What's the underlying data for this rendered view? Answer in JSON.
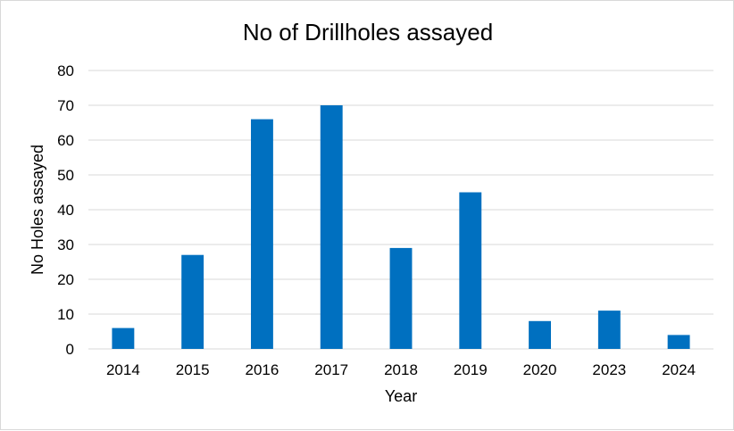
{
  "chart_data": {
    "type": "bar",
    "title": "No of Drillholes assayed",
    "xlabel": "Year",
    "ylabel": "No Holes assayed",
    "categories": [
      "2014",
      "2015",
      "2016",
      "2017",
      "2018",
      "2019",
      "2020",
      "2023",
      "2024"
    ],
    "values": [
      6,
      27,
      66,
      70,
      29,
      45,
      8,
      11,
      4
    ],
    "ylim": [
      0,
      80
    ],
    "yticks": [
      "0",
      "10",
      "20",
      "30",
      "40",
      "50",
      "60",
      "70",
      "80"
    ],
    "grid": true,
    "legend": "none",
    "bar_color": "#0070c0",
    "grid_color": "#d9d9d9"
  }
}
